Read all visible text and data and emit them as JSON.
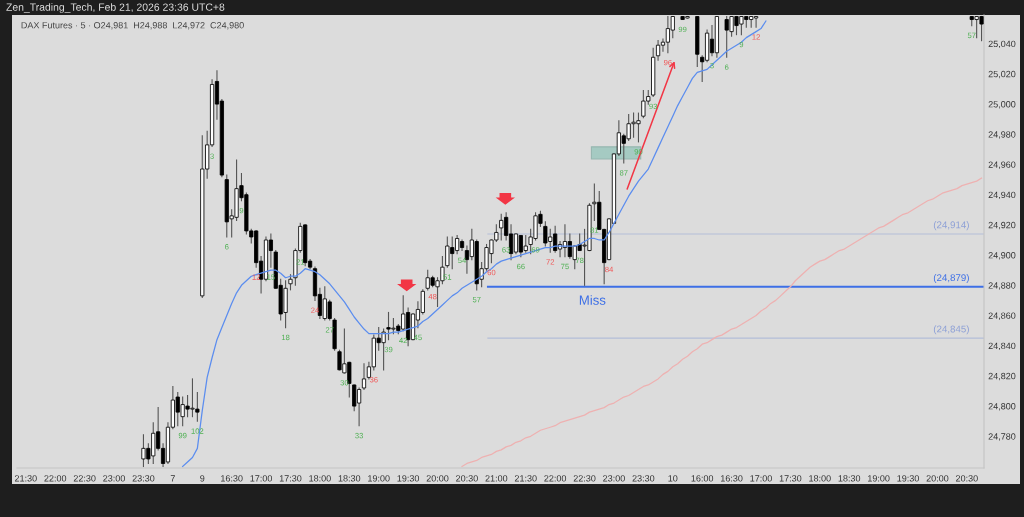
{
  "chart_data": {
    "type": "candlestick",
    "title": "Zen_Trading_Tech, Feb 21, 2026 23:36 UTC+8",
    "subtitle": "DAX Futures · 5 · O24,981  H24,988  L24,972  C24,980",
    "categories": [
      "21:30",
      null,
      null,
      null,
      null,
      null,
      "22:00",
      null,
      null,
      null,
      null,
      null,
      "22:30",
      null,
      null,
      null,
      null,
      null,
      "23:00",
      null,
      null,
      null,
      null,
      null,
      "23:30",
      null,
      null,
      null,
      null,
      null,
      "7",
      null,
      null,
      null,
      null,
      null,
      "9",
      null,
      null,
      null,
      null,
      null,
      "16:30",
      null,
      null,
      null,
      null,
      null,
      "17:00",
      null,
      null,
      null,
      null,
      null,
      "17:30",
      null,
      null,
      null,
      null,
      null,
      "18:00",
      null,
      null,
      null,
      null,
      null,
      "18:30",
      null,
      null,
      null,
      null,
      null,
      "19:00",
      null,
      null,
      null,
      null,
      null,
      "19:30",
      null,
      null,
      null,
      null,
      null,
      "20:00",
      null,
      null,
      null,
      null,
      null,
      "20:30",
      null,
      null,
      null,
      null,
      null,
      "21:00",
      null,
      null,
      null,
      null,
      null,
      "21:30",
      null,
      null,
      null,
      null,
      null,
      "22:00",
      null,
      null,
      null,
      null,
      null,
      "22:30",
      null,
      null,
      null,
      null,
      null,
      "23:00",
      null,
      null,
      null,
      null,
      null,
      "23:30",
      null,
      null,
      null,
      null,
      null,
      "10",
      null,
      null,
      null,
      null,
      null,
      "16:00",
      null,
      null,
      null,
      null,
      null,
      "16:30",
      null,
      null,
      null,
      null,
      null,
      "17:00",
      null,
      null,
      null,
      null,
      null,
      "17:30",
      null,
      null,
      null,
      null,
      null,
      "18:00",
      null,
      null,
      null,
      null,
      null,
      "18:30",
      null,
      null,
      null,
      null,
      null,
      "19:00",
      null,
      null,
      null,
      null,
      null,
      "19:30",
      null,
      null,
      null,
      null,
      null,
      "20:00",
      null,
      null,
      null,
      null,
      null,
      "20:30",
      null,
      null,
      null
    ],
    "ohlc": [
      null,
      null,
      null,
      null,
      null,
      null,
      null,
      null,
      null,
      null,
      null,
      null,
      null,
      null,
      null,
      null,
      null,
      null,
      null,
      null,
      null,
      null,
      null,
      null,
      [
        24765,
        24781,
        24760,
        24772
      ],
      [
        24772,
        24775,
        24762,
        24765
      ],
      [
        24767,
        24789,
        24762,
        24782
      ],
      [
        24783,
        24799,
        24771,
        24772
      ],
      [
        24772,
        24775,
        24760,
        24762
      ],
      [
        24763,
        24789,
        24762,
        24786
      ],
      [
        24786,
        24813,
        24785,
        24804
      ],
      [
        24806,
        24809,
        24787,
        24796
      ],
      [
        24793,
        24806,
        24787,
        24801
      ],
      [
        24800,
        24807,
        24793,
        24798
      ],
      [
        24798,
        24818,
        24793,
        24798
      ],
      [
        24798,
        24809,
        24790,
        24796
      ],
      [
        24873,
        24979,
        24872,
        24957
      ],
      [
        24957,
        24982,
        24951,
        24973
      ],
      [
        24973,
        25016,
        24972,
        25013
      ],
      [
        25015,
        25022,
        24990,
        25000
      ],
      [
        25002,
        25003,
        24952,
        24953
      ],
      [
        24950,
        24953,
        24912,
        24922
      ],
      [
        24924,
        24930,
        24912,
        24926
      ],
      [
        24925,
        24963,
        24923,
        24944
      ],
      [
        24946,
        24954,
        24936,
        24938
      ],
      [
        24940,
        24941,
        24914,
        24916
      ],
      [
        24916,
        24917,
        24908,
        24912
      ],
      [
        24916,
        24916,
        24892,
        24895
      ],
      [
        24896,
        24899,
        24875,
        24884
      ],
      [
        24884,
        24912,
        24883,
        24910
      ],
      [
        24910,
        24914,
        24892,
        24903
      ],
      [
        24902,
        24903,
        24878,
        24878
      ],
      [
        24880,
        24884,
        24857,
        24861
      ],
      [
        24862,
        24883,
        24852,
        24878
      ],
      [
        24881,
        24887,
        24877,
        24884
      ],
      [
        24885,
        24904,
        24880,
        24903
      ],
      [
        24903,
        24921,
        24902,
        24919
      ],
      [
        24920,
        24920,
        24893,
        24895
      ],
      [
        24896,
        24897,
        24891,
        24892
      ],
      [
        24891,
        24892,
        24870,
        24873
      ],
      [
        24874,
        24878,
        24858,
        24860
      ],
      [
        24858,
        24879,
        24857,
        24871
      ],
      [
        24869,
        24870,
        24857,
        24858
      ],
      [
        24857,
        24858,
        24837,
        24838
      ],
      [
        24836,
        24837,
        24824,
        24824
      ],
      [
        24822,
        24851,
        24822,
        24828
      ],
      [
        24829,
        24829,
        24806,
        24815
      ],
      [
        24814,
        24814,
        24797,
        24800
      ],
      [
        24802,
        24812,
        24787,
        24811
      ],
      [
        24812,
        24828,
        24811,
        24818
      ],
      [
        24819,
        24829,
        24818,
        24826
      ],
      [
        24826,
        24847,
        24824,
        24845
      ],
      [
        24845,
        24852,
        24837,
        24842
      ],
      [
        24842,
        24851,
        24824,
        24849
      ],
      [
        24852,
        24862,
        24844,
        24851
      ],
      [
        24851,
        24858,
        24848,
        24851
      ],
      [
        24853,
        24854,
        24848,
        24850
      ],
      [
        24851,
        24873,
        24850,
        24861
      ],
      [
        24862,
        24865,
        24840,
        24844
      ],
      [
        24844,
        24861,
        24844,
        24861
      ],
      [
        24857,
        24869,
        24852,
        24864
      ],
      [
        24862,
        24877,
        24861,
        24876
      ],
      [
        24878,
        24890,
        24877,
        24885
      ],
      [
        24885,
        24886,
        24879,
        24880
      ],
      [
        24879,
        24885,
        24866,
        24883
      ],
      [
        24883,
        24899,
        24881,
        24892
      ],
      [
        24893,
        24912,
        24892,
        24906
      ],
      [
        24905,
        24912,
        24891,
        24901
      ],
      [
        24903,
        24913,
        24901,
        24911
      ],
      [
        24909,
        24910,
        24903,
        24905
      ],
      [
        24903,
        24906,
        24888,
        24897
      ],
      [
        24899,
        24917,
        24897,
        24910
      ],
      [
        24909,
        24910,
        24877,
        24881
      ],
      [
        24884,
        24895,
        24879,
        24891
      ],
      [
        24891,
        24907,
        24890,
        24905
      ],
      [
        24901,
        24910,
        24895,
        24910
      ],
      [
        24910,
        24920,
        24909,
        24915
      ],
      [
        24918,
        24927,
        24910,
        24923
      ],
      [
        24925,
        24928,
        24910,
        24913
      ],
      [
        24914,
        24920,
        24897,
        24901
      ],
      [
        24902,
        24914,
        24901,
        24914
      ],
      [
        24913,
        24913,
        24899,
        24902
      ],
      [
        24903,
        24913,
        24902,
        24906
      ],
      [
        24907,
        24917,
        24901,
        24912
      ],
      [
        24911,
        24928,
        24910,
        24926
      ],
      [
        24927,
        24929,
        24919,
        24921
      ],
      [
        24919,
        24922,
        24906,
        24908
      ],
      [
        24909,
        24917,
        24902,
        24912
      ],
      [
        24914,
        24919,
        24902,
        24903
      ],
      [
        24904,
        24909,
        24899,
        24907
      ],
      [
        24905,
        24920,
        24899,
        24909
      ],
      [
        24909,
        24914,
        24898,
        24899
      ],
      [
        24897,
        24906,
        24891,
        24906
      ],
      [
        24907,
        24914,
        24903,
        24903
      ],
      [
        24906,
        24917,
        24880,
        24906
      ],
      [
        24903,
        24934,
        24903,
        24933
      ],
      [
        24934,
        24947,
        24923,
        24935
      ],
      [
        24935,
        24942,
        24917,
        24917
      ],
      [
        24917,
        24917,
        24881,
        24895
      ],
      [
        24897,
        24924,
        24897,
        24924
      ],
      [
        24921,
        24967,
        24921,
        24967
      ],
      [
        24967,
        24989,
        24966,
        24981
      ],
      [
        24979,
        24980,
        24961,
        24974
      ],
      [
        24977,
        24993,
        24976,
        24987
      ],
      [
        24987,
        24994,
        24978,
        24988
      ],
      [
        24987,
        24994,
        24975,
        24989
      ],
      [
        24992,
        25009,
        24991,
        25002
      ],
      [
        25002,
        25009,
        25000,
        25005
      ],
      [
        25006,
        25037,
        25005,
        25031
      ],
      [
        25032,
        25042,
        25029,
        25039
      ],
      [
        25039,
        25043,
        25035,
        25041
      ],
      [
        25041,
        25058,
        25034,
        25050
      ],
      [
        25049,
        25058,
        25044,
        25058
      ],
      null,
      [
        25058,
        25058,
        25056,
        25056
      ],
      [
        25057,
        25058,
        25057,
        25058
      ],
      null,
      [
        25058,
        25058,
        25025,
        25033
      ],
      [
        25031,
        25032,
        25015,
        25028
      ],
      [
        25029,
        25049,
        25028,
        25047
      ],
      [
        25043,
        25052,
        25032,
        25034
      ],
      [
        25034,
        25058,
        25031,
        25058
      ],
      null,
      [
        25056,
        25058,
        25031,
        25049
      ],
      [
        25048,
        25058,
        25045,
        25058
      ],
      [
        25058,
        25058,
        25046,
        25052
      ],
      [
        25053,
        25058,
        25046,
        25058
      ],
      [
        25058,
        25058,
        25051,
        25056
      ],
      [
        25056,
        25058,
        25051,
        25058
      ],
      [
        25057,
        25058,
        25051,
        25058
      ],
      null,
      null,
      null,
      null,
      null,
      null,
      null,
      null,
      null,
      null,
      null,
      null,
      null,
      null,
      null,
      null,
      null,
      null,
      null,
      null,
      null,
      null,
      null,
      null,
      null,
      null,
      null,
      null,
      null,
      null,
      null,
      null,
      null,
      null,
      null,
      null,
      null,
      null,
      null,
      null,
      null,
      null,
      null,
      [
        25058,
        25058,
        25052,
        25056
      ],
      [
        25056,
        25058,
        25044,
        25058
      ],
      [
        25058,
        25058,
        25042,
        25053
      ]
    ],
    "value_labels": [
      null,
      null,
      null,
      null,
      null,
      null,
      null,
      null,
      null,
      null,
      null,
      null,
      null,
      null,
      null,
      null,
      null,
      null,
      null,
      null,
      null,
      null,
      null,
      null,
      null,
      null,
      null,
      null,
      null,
      null,
      null,
      null,
      "99",
      null,
      null,
      "102",
      null,
      null,
      "3",
      null,
      null,
      "6",
      null,
      null,
      "9",
      null,
      null,
      "12",
      null,
      null,
      "15",
      null,
      null,
      "18",
      null,
      null,
      "21",
      null,
      null,
      "24",
      null,
      null,
      "27",
      null,
      null,
      "30",
      null,
      null,
      "33",
      null,
      null,
      "36",
      null,
      null,
      "39",
      null,
      null,
      "42",
      null,
      null,
      "45",
      null,
      null,
      "48",
      null,
      null,
      "51",
      null,
      null,
      "54",
      null,
      null,
      "57",
      null,
      null,
      "60",
      null,
      null,
      "63",
      null,
      null,
      "66",
      null,
      null,
      "69",
      null,
      null,
      "72",
      null,
      null,
      "75",
      null,
      null,
      "78",
      null,
      null,
      "81",
      null,
      null,
      "84",
      null,
      null,
      "87",
      null,
      null,
      "90",
      null,
      null,
      "93",
      null,
      null,
      "96",
      null,
      null,
      "99",
      null,
      null,
      null,
      null,
      null,
      "3",
      null,
      null,
      "6",
      null,
      null,
      "9",
      null,
      null,
      "12",
      null,
      null,
      null,
      null,
      null,
      null,
      null,
      null,
      null,
      null,
      null,
      null,
      null,
      null,
      null,
      null,
      null,
      null,
      null,
      null,
      null,
      null,
      null,
      null,
      null,
      null,
      null,
      null,
      null,
      null,
      null,
      null,
      null,
      null,
      null,
      null,
      null,
      null,
      null,
      null,
      null,
      null,
      null,
      "57",
      null,
      null
    ],
    "series": [
      {
        "type": "line",
        "color": "#5b8def",
        "values": [
          null,
          null,
          null,
          null,
          null,
          null,
          null,
          null,
          null,
          null,
          null,
          null,
          null,
          null,
          null,
          null,
          null,
          null,
          null,
          null,
          null,
          null,
          null,
          null,
          null,
          null,
          null,
          null,
          null,
          null,
          null,
          null,
          24760,
          24763,
          24766,
          24772,
          24797,
          24819,
          24832,
          24844,
          24852,
          24860,
          24868,
          24875,
          24880,
          24883,
          24886,
          24887,
          24888,
          24889,
          24890,
          24890,
          24888,
          24885,
          24886,
          24886,
          24888,
          24891,
          24890,
          24889,
          24887,
          24884,
          24881,
          24877,
          24873,
          24869,
          24864,
          24859,
          24855,
          24851,
          24848,
          24848,
          24848,
          24848,
          24848,
          24849,
          24849,
          24850,
          24851,
          24852,
          24853,
          24856,
          24858,
          24861,
          24864,
          24867,
          24870,
          24873,
          24875,
          24878,
          24880,
          24882,
          24884,
          24886,
          24889,
          24891,
          24894,
          24896,
          24897,
          24898,
          24899,
          24900,
          24901,
          24902,
          24903,
          24904,
          24905,
          24905,
          24906,
          24906,
          24906,
          24906,
          24906,
          24907,
          24909,
          24911,
          24911,
          24910,
          24910,
          24915,
          24921,
          24927,
          24933,
          24939,
          24944,
          24949,
          24953,
          24957,
          24964,
          24971,
          24978,
          24985,
          24992,
          24999,
          25005,
          25011,
          25017,
          25021,
          25022,
          25023,
          25026,
          25029,
          25032,
          25035,
          25037,
          25039,
          25041,
          25044,
          25046,
          25048,
          25050,
          25055,
          null,
          null,
          null,
          null,
          null,
          null,
          null,
          null,
          null,
          null,
          null,
          null,
          null,
          null,
          null,
          null,
          null,
          null,
          null,
          null,
          null,
          null,
          null,
          null,
          null,
          null,
          null,
          null,
          null,
          null,
          null,
          null,
          null,
          null,
          null,
          null,
          null,
          null,
          null,
          null,
          null,
          null,
          null,
          null
        ]
      },
      {
        "type": "line",
        "color": "#eeb1b1",
        "values": [
          null,
          null,
          null,
          null,
          null,
          null,
          null,
          null,
          null,
          null,
          null,
          null,
          null,
          null,
          null,
          null,
          null,
          null,
          null,
          null,
          null,
          null,
          null,
          null,
          null,
          null,
          null,
          null,
          null,
          null,
          null,
          null,
          null,
          null,
          null,
          null,
          null,
          null,
          null,
          null,
          null,
          null,
          null,
          null,
          null,
          null,
          null,
          null,
          null,
          null,
          null,
          null,
          null,
          null,
          null,
          null,
          null,
          null,
          null,
          null,
          null,
          null,
          null,
          null,
          null,
          null,
          null,
          null,
          null,
          null,
          null,
          null,
          null,
          null,
          null,
          null,
          null,
          null,
          null,
          null,
          null,
          null,
          null,
          null,
          null,
          null,
          null,
          null,
          null,
          24760,
          24762,
          24763,
          24764,
          24766,
          24767,
          24768,
          24770,
          24771,
          24773,
          24774,
          24776,
          24777,
          24779,
          24780,
          24782,
          24784,
          24785,
          24786,
          24787,
          24789,
          24790,
          24791,
          24792,
          24793,
          24794,
          24796,
          24797,
          24798,
          24799,
          24801,
          24802,
          24804,
          24806,
          24807,
          24809,
          24811,
          24813,
          24814,
          24816,
          24818,
          24821,
          24823,
          24826,
          24828,
          24831,
          24833,
          24836,
          24838,
          24841,
          24842,
          24844,
          24846,
          24847,
          24849,
          24851,
          24852,
          24854,
          24856,
          24858,
          24860,
          24863,
          24865,
          24868,
          24870,
          24873,
          24876,
          24879,
          24883,
          24886,
          24889,
          24892,
          24894,
          24896,
          24897,
          24899,
          24901,
          24903,
          24904,
          24906,
          24908,
          24910,
          24912,
          24914,
          24916,
          24918,
          24919,
          24921,
          24923,
          24925,
          24927,
          24928,
          24930,
          24932,
          24934,
          24936,
          24937,
          24939,
          24941,
          24942,
          24943,
          24944,
          24946,
          24947,
          24948,
          24949,
          24951
        ]
      }
    ],
    "ref_lines": [
      {
        "axis": "y",
        "value": 24879,
        "label": "(24,879)",
        "color": "#3d6fe6"
      },
      {
        "axis": "y",
        "value": 24914,
        "label": "(24,914)",
        "color": "#8c9fd6"
      },
      {
        "axis": "y",
        "value": 24845,
        "label": "(24,845)",
        "color": "#8c9fd6"
      }
    ],
    "annotations": [
      {
        "text": "Miss",
        "y": 24879
      }
    ],
    "ylim": [
      24759,
      25059
    ],
    "yticks": [
      {
        "value": 24780,
        "label": "24,780"
      },
      {
        "value": 24800,
        "label": "24,800"
      },
      {
        "value": 24820,
        "label": "24,820"
      },
      {
        "value": 24840,
        "label": "24,840"
      },
      {
        "value": 24860,
        "label": "24,860"
      },
      {
        "value": 24880,
        "label": "24,880"
      },
      {
        "value": 24900,
        "label": "24,900"
      },
      {
        "value": 24920,
        "label": "24,920"
      },
      {
        "value": 24940,
        "label": "24,940"
      },
      {
        "value": 24960,
        "label": "24,960"
      },
      {
        "value": 24980,
        "label": "24,980"
      },
      {
        "value": 25000,
        "label": "25,000"
      },
      {
        "value": 25020,
        "label": "25,020"
      },
      {
        "value": 25040,
        "label": "25,040"
      }
    ],
    "legend": false
  }
}
